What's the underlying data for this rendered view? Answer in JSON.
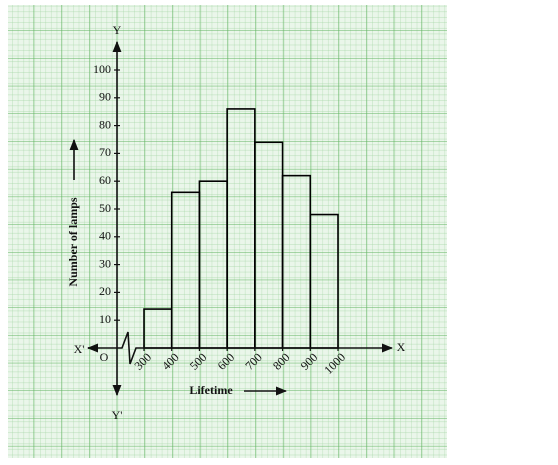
{
  "chart_data": {
    "type": "histogram",
    "x_label": "Lifetime",
    "y_label": "Number of lamps",
    "axis_names": {
      "x_pos": "X",
      "x_neg": "X'",
      "y_pos": "Y",
      "y_neg": "Y'",
      "origin": "O"
    },
    "bins": [
      300,
      400,
      500,
      600,
      700,
      800,
      900,
      1000
    ],
    "values": [
      14,
      56,
      60,
      86,
      74,
      62,
      48
    ],
    "color": "#000000",
    "xlim": [
      300,
      1000
    ],
    "xticks": [
      300,
      400,
      500,
      600,
      700,
      800,
      900,
      1000
    ],
    "ylim": [
      0,
      100
    ],
    "yticks": [
      10,
      20,
      30,
      40,
      50,
      60,
      70,
      80,
      90,
      100
    ],
    "grid": true
  }
}
